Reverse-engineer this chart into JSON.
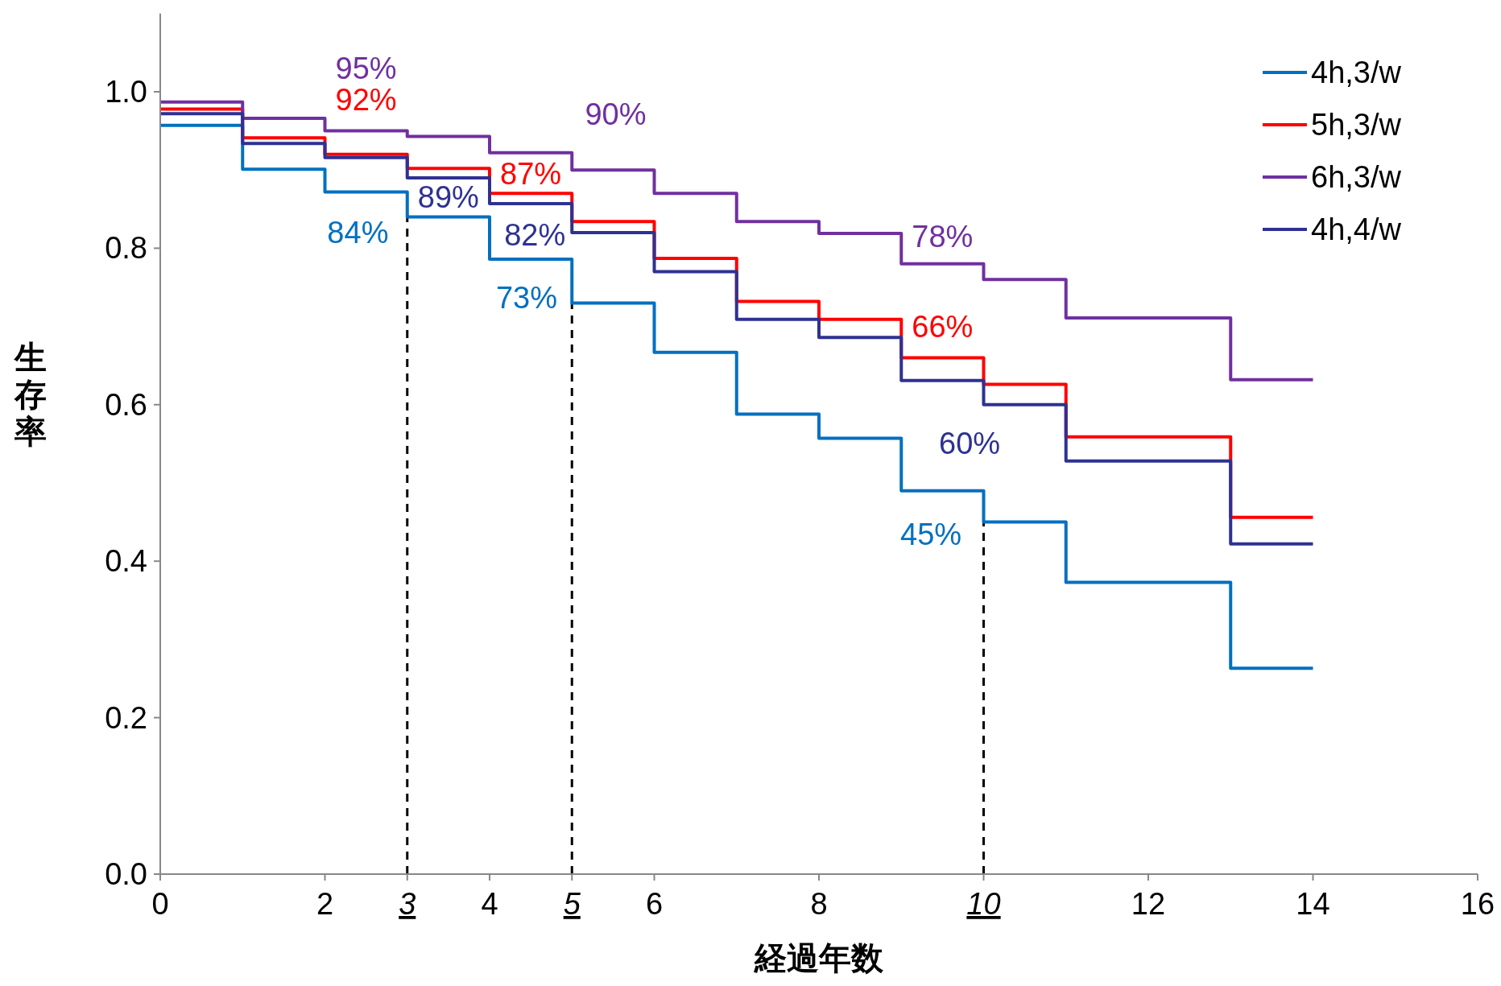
{
  "chart_data": {
    "type": "step",
    "xlabel": "経過年数",
    "ylabel": "生存率",
    "xlim": [
      0,
      16
    ],
    "ylim": [
      0,
      1.1
    ],
    "xticks": [
      0,
      2,
      3,
      4,
      5,
      6,
      8,
      10,
      12,
      14,
      16
    ],
    "yticks": [
      {
        "value": 0,
        "label": "0.0"
      },
      {
        "value": 0.2,
        "label": "0.2"
      },
      {
        "value": 0.4,
        "label": "0.4"
      },
      {
        "value": 0.6,
        "label": "0.6"
      },
      {
        "value": 0.8,
        "label": "0.8"
      },
      {
        "value": 1,
        "label": "1.0"
      }
    ],
    "x": [
      0,
      1,
      2,
      3,
      4,
      5,
      6,
      7,
      8,
      9,
      10,
      11,
      13,
      14
    ],
    "series": [
      {
        "name": "4h,3/w",
        "color": "#0070c0",
        "values": [
          0.957,
          0.901,
          0.872,
          0.84,
          0.786,
          0.73,
          0.667,
          0.588,
          0.557,
          0.49,
          0.45,
          0.373,
          0.263,
          0.263
        ],
        "value_labels": [
          null,
          null,
          null,
          "84%",
          null,
          "73%",
          null,
          null,
          null,
          null,
          "45%",
          null,
          null,
          null
        ]
      },
      {
        "name": "5h,3/w",
        "color": "#ff0000",
        "values": [
          0.978,
          0.941,
          0.92,
          0.902,
          0.87,
          0.834,
          0.787,
          0.732,
          0.709,
          0.66,
          0.626,
          0.559,
          0.456,
          0.456
        ],
        "value_labels": [
          null,
          null,
          "92%",
          null,
          "87%",
          null,
          null,
          null,
          null,
          "66%",
          null,
          null,
          null,
          null
        ]
      },
      {
        "name": "6h,3/w",
        "color": "#7030a0",
        "values": [
          0.987,
          0.966,
          0.95,
          0.943,
          0.922,
          0.9,
          0.87,
          0.834,
          0.819,
          0.78,
          0.76,
          0.711,
          0.632,
          0.632
        ],
        "value_labels": [
          null,
          null,
          "95%",
          null,
          null,
          "90%",
          null,
          null,
          null,
          "78%",
          null,
          null,
          null,
          null
        ]
      },
      {
        "name": "4h,4/w",
        "color": "#2e3192",
        "values": [
          0.972,
          0.934,
          0.916,
          0.89,
          0.857,
          0.82,
          0.77,
          0.709,
          0.686,
          0.631,
          0.6,
          0.528,
          0.422,
          0.422
        ],
        "value_labels": [
          null,
          null,
          null,
          "89%",
          null,
          "82%",
          null,
          null,
          null,
          null,
          "60%",
          null,
          null,
          null
        ]
      }
    ],
    "ref_lines": [
      {
        "axis": "x",
        "value": 3,
        "color": "#000000",
        "line_style": "dashed"
      },
      {
        "axis": "x",
        "value": 5,
        "color": "#000000",
        "line_style": "dashed"
      },
      {
        "axis": "x",
        "value": 10,
        "color": "#000000",
        "line_style": "dashed"
      }
    ],
    "legend": "top right",
    "grid": false
  }
}
